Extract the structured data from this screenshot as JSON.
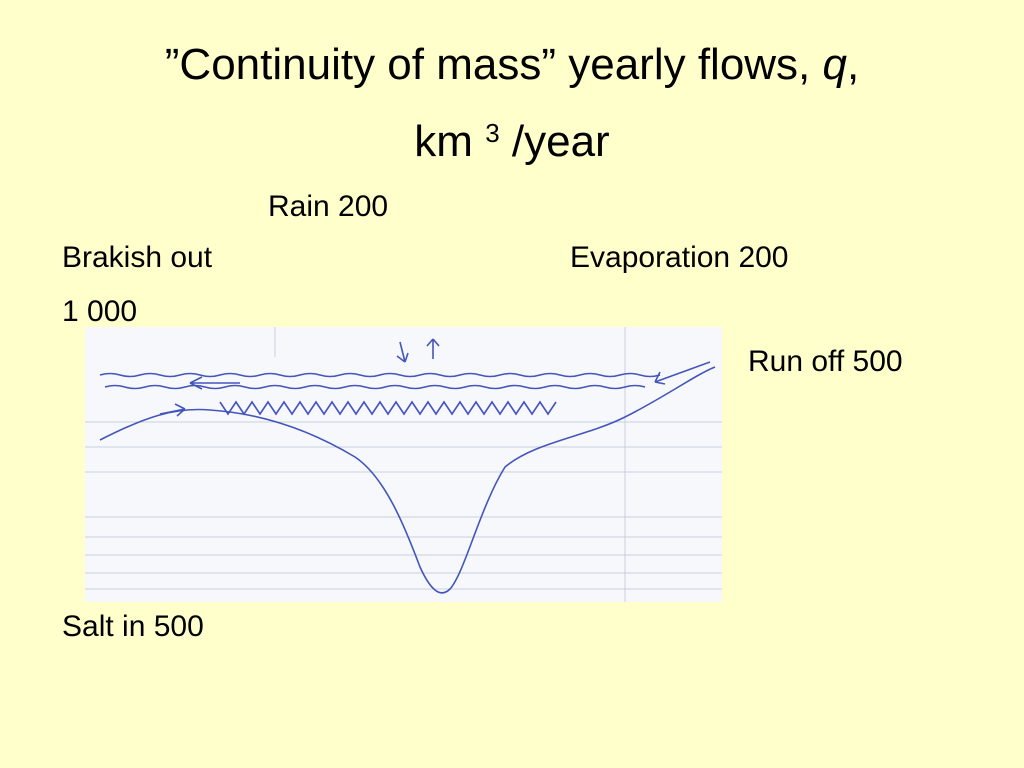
{
  "title": {
    "line1": "”Continuity of mass” yearly flows, ",
    "q": "q",
    "comma": ",",
    "line2_start": "km ",
    "superscript": "3",
    "line2_end": " /year"
  },
  "labels": {
    "rain": "Rain 200",
    "brakish_out": "Brakish out",
    "brakish_value": "1 000",
    "evaporation": "Evaporation 200",
    "run_off": "Run off 500",
    "salt_in": "Salt in 500"
  }
}
